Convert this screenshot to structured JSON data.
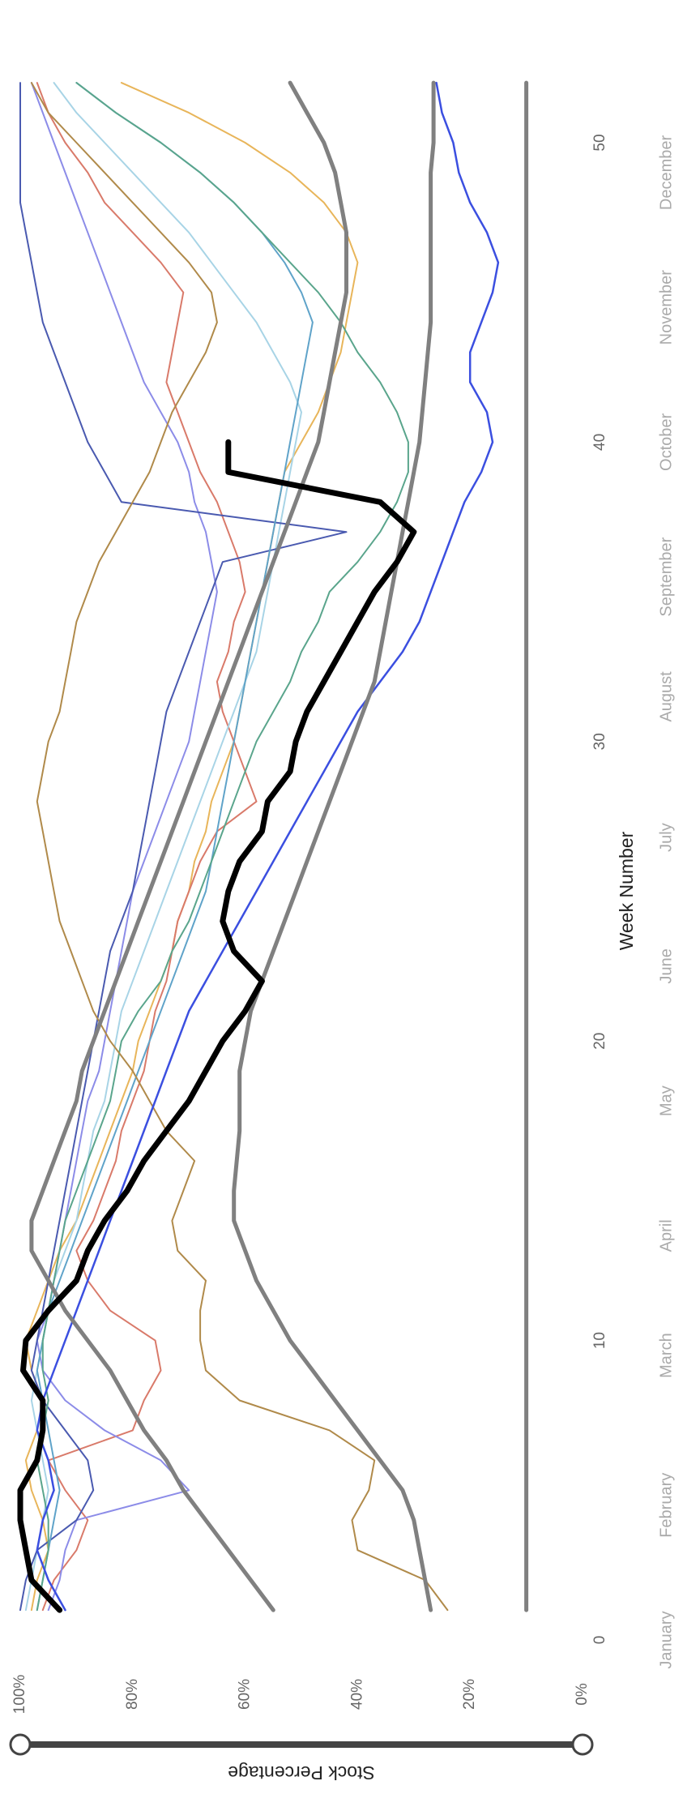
{
  "chart_data": {
    "type": "line",
    "xlabel": "Week Number",
    "ylabel": "Stock Percentage",
    "x": [
      1,
      2,
      3,
      4,
      5,
      6,
      7,
      8,
      9,
      10,
      11,
      12,
      13,
      14,
      15,
      16,
      17,
      18,
      19,
      20,
      21,
      22,
      23,
      24,
      25,
      26,
      27,
      28,
      29,
      30,
      31,
      32,
      33,
      34,
      35,
      36,
      37,
      38,
      39,
      40,
      41,
      42,
      43,
      44,
      45,
      46,
      47,
      48,
      49,
      50,
      51,
      52
    ],
    "xlim": [
      0,
      54
    ],
    "xticks": [
      0,
      10,
      20,
      30,
      40,
      50
    ],
    "month_ticks": [
      {
        "value": 0,
        "label": "January"
      },
      {
        "value": 4.5,
        "label": "February"
      },
      {
        "value": 9.5,
        "label": "March"
      },
      {
        "value": 13.5,
        "label": "April"
      },
      {
        "value": 18,
        "label": "May"
      },
      {
        "value": 22.5,
        "label": "June"
      },
      {
        "value": 26.8,
        "label": "July"
      },
      {
        "value": 31.5,
        "label": "August"
      },
      {
        "value": 35.5,
        "label": "September"
      },
      {
        "value": 40,
        "label": "October"
      },
      {
        "value": 44.5,
        "label": "November"
      },
      {
        "value": 49,
        "label": "December"
      }
    ],
    "ylim": [
      0,
      100
    ],
    "yticks": [
      {
        "value": 0,
        "label": "0%"
      },
      {
        "value": 20,
        "label": "20%"
      },
      {
        "value": 40,
        "label": "40%"
      },
      {
        "value": 60,
        "label": "60%"
      },
      {
        "value": 80,
        "label": "80%"
      },
      {
        "value": 100,
        "label": "100%"
      }
    ],
    "series": [
      {
        "color": "#e8b55a",
        "line_width": 2,
        "values": [
          98,
          97,
          95,
          96,
          98,
          99,
          97,
          96,
          98,
          99,
          97,
          95,
          93,
          90,
          88,
          86,
          84,
          82,
          80,
          79,
          77,
          75,
          73,
          72,
          70,
          69,
          67,
          66,
          64,
          62,
          61,
          60,
          59,
          58,
          57,
          56,
          55,
          54,
          53,
          50,
          47,
          45,
          43,
          42,
          41,
          40,
          42,
          46,
          52,
          60,
          70,
          82
        ]
      },
      {
        "color": "#d97a6a",
        "line_width": 2,
        "values": [
          96,
          94,
          90,
          88,
          92,
          95,
          80,
          78,
          75,
          76,
          84,
          88,
          90,
          87,
          85,
          83,
          82,
          80,
          78,
          77,
          76,
          74,
          73,
          72,
          70,
          68,
          65,
          58,
          60,
          62,
          64,
          65,
          63,
          62,
          60,
          61,
          63,
          65,
          68,
          70,
          72,
          74,
          73,
          72,
          71,
          75,
          80,
          85,
          88,
          92,
          95,
          97
        ]
      },
      {
        "color": "#a8d4e6",
        "line_width": 2,
        "values": [
          99,
          98,
          97,
          96,
          95,
          96,
          97,
          98,
          97,
          96,
          95,
          94,
          92,
          90,
          89,
          88,
          87,
          85,
          84,
          83,
          82,
          80,
          78,
          76,
          74,
          72,
          70,
          68,
          66,
          64,
          62,
          60,
          58,
          57,
          56,
          55,
          54,
          53,
          52,
          51,
          50,
          52,
          55,
          58,
          62,
          66,
          70,
          75,
          80,
          85,
          90,
          94
        ]
      },
      {
        "color": "#8c8ce8",
        "line_width": 2,
        "values": [
          95,
          93,
          92,
          90,
          70,
          75,
          85,
          92,
          96,
          97,
          95,
          94,
          93,
          92,
          91,
          90,
          89,
          88,
          86,
          85,
          84,
          83,
          82,
          81,
          80,
          78,
          76,
          74,
          72,
          70,
          69,
          68,
          67,
          66,
          65,
          66,
          67,
          69,
          70,
          72,
          75,
          78,
          80,
          82,
          84,
          86,
          88,
          90,
          92,
          94,
          96,
          98
        ]
      },
      {
        "color": "#4a5ab0",
        "line_width": 2,
        "values": [
          100,
          99,
          97,
          90,
          87,
          88,
          92,
          96,
          98,
          97,
          96,
          95,
          94,
          93,
          92,
          91,
          90,
          89,
          88,
          87,
          86,
          85,
          84,
          82,
          80,
          79,
          78,
          77,
          76,
          75,
          74,
          72,
          70,
          68,
          66,
          64,
          42,
          82,
          85,
          88,
          90,
          92,
          94,
          96,
          97,
          98,
          99,
          100,
          100,
          100,
          100,
          100
        ]
      },
      {
        "color": "#5fa3c9",
        "line_width": 2,
        "values": [
          97,
          96,
          95,
          94,
          93,
          94,
          95,
          96,
          97,
          96,
          95,
          93,
          91,
          89,
          87,
          85,
          83,
          81,
          79,
          77,
          75,
          73,
          71,
          69,
          67,
          66,
          65,
          64,
          63,
          62,
          61,
          60,
          59,
          58,
          57,
          56,
          55,
          54,
          53,
          52,
          51,
          50,
          49,
          48,
          50,
          53,
          57,
          62,
          68,
          75,
          83,
          90
        ]
      },
      {
        "color": "#5aa58c",
        "line_width": 2,
        "values": [
          97,
          96,
          95,
          95,
          96,
          97,
          96,
          95,
          96,
          96,
          95,
          94,
          93,
          92,
          90,
          88,
          86,
          84,
          83,
          82,
          79,
          75,
          73,
          70,
          68,
          66,
          64,
          62,
          60,
          58,
          55,
          52,
          50,
          47,
          45,
          40,
          36,
          33,
          31,
          31,
          33,
          36,
          40,
          43,
          47,
          52,
          57,
          62,
          68,
          75,
          83,
          90
        ]
      },
      {
        "color": "#b08a4a",
        "line_width": 2,
        "values": [
          24,
          28,
          40,
          41,
          38,
          37,
          45,
          61,
          67,
          68,
          68,
          67,
          72,
          73,
          71,
          69,
          74,
          77,
          80,
          84,
          87,
          89,
          91,
          93,
          94,
          95,
          96,
          97,
          96,
          95,
          93,
          92,
          91,
          90,
          88,
          86,
          83,
          80,
          77,
          75,
          73,
          70,
          67,
          65,
          66,
          70,
          75,
          80,
          85,
          90,
          95,
          98
        ]
      },
      {
        "color": "#3b4fe0",
        "line_width": 2.5,
        "values": [
          92,
          95,
          97,
          96,
          94,
          95,
          97,
          96,
          94,
          92,
          90,
          88,
          86,
          84,
          82,
          80,
          78,
          76,
          74,
          72,
          70,
          67,
          64,
          61,
          58,
          55,
          52,
          49,
          46,
          43,
          40,
          36,
          32,
          29,
          27,
          25,
          23,
          21,
          18,
          16,
          17,
          20,
          20,
          18,
          16,
          15,
          17,
          20,
          22,
          23,
          25,
          26
        ]
      },
      {
        "color": "#808080",
        "line_width": 5,
        "values": [
          27,
          28,
          29,
          30,
          32,
          36,
          40,
          44,
          48,
          52,
          55,
          58,
          60,
          62,
          62,
          61.5,
          61,
          61,
          61,
          60,
          59,
          57,
          55,
          53,
          51,
          49,
          47,
          45,
          43,
          41,
          39,
          37,
          36,
          35,
          34,
          33,
          32,
          31,
          30,
          29,
          28.5,
          28,
          27.5,
          27,
          27,
          27,
          27,
          27,
          27,
          26.5,
          26.5,
          26.5
        ]
      },
      {
        "color": "#808080",
        "line_width": 5,
        "values": [
          55,
          59,
          63,
          67,
          71,
          74,
          78,
          81,
          84,
          88,
          92,
          95,
          98,
          98,
          96,
          94,
          92,
          90,
          89,
          87,
          85,
          83,
          81,
          79,
          77,
          75,
          73,
          71,
          69,
          67,
          65,
          63,
          61,
          59,
          57,
          55,
          53,
          51,
          49,
          47,
          46,
          45,
          44,
          43,
          42,
          42,
          42,
          43,
          44,
          46,
          49,
          52
        ]
      },
      {
        "color": "#808080",
        "line_width": 5,
        "values": [
          10,
          10,
          10,
          10,
          10,
          10,
          10,
          10,
          10,
          10,
          10,
          10,
          10,
          10,
          10,
          10,
          10,
          10,
          10,
          10,
          10,
          10,
          10,
          10,
          10,
          10,
          10,
          10,
          10,
          10,
          10,
          10,
          10,
          10,
          10,
          10,
          10,
          10,
          10,
          10,
          10,
          10,
          10,
          10,
          10,
          10,
          10,
          10,
          10,
          10,
          10,
          10
        ]
      },
      {
        "color": "#000000",
        "line_width": 7,
        "values": [
          93,
          98,
          99,
          100,
          100,
          97,
          96,
          96,
          99.5,
          99,
          95,
          90,
          88,
          85,
          81,
          78,
          74,
          70,
          67,
          64,
          60,
          57,
          62,
          64,
          63,
          61,
          57,
          56,
          52,
          51,
          49,
          46,
          43,
          40,
          37,
          33,
          30,
          36,
          63,
          63,
          null,
          null,
          null,
          null,
          null,
          null,
          null,
          null,
          null,
          null,
          null,
          null
        ]
      }
    ]
  }
}
